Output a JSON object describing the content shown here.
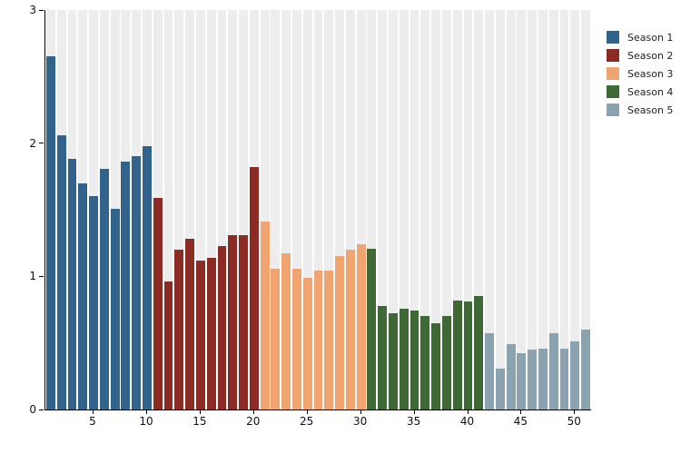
{
  "chart_data": {
    "type": "bar",
    "title": "",
    "xlabel": "",
    "ylabel": "",
    "x_range": [
      1,
      51
    ],
    "ylim": [
      0,
      3
    ],
    "yticks": [
      "0",
      "1",
      "2",
      "3"
    ],
    "xticks": [
      "5",
      "10",
      "15",
      "20",
      "25",
      "30",
      "35",
      "40",
      "45",
      "50"
    ],
    "xtick_positions": [
      5,
      10,
      15,
      20,
      25,
      30,
      35,
      40,
      45,
      50
    ],
    "grid": "column-bands",
    "band_color": "#EDEDED",
    "axis_color": "#000000",
    "legend_position": "top-right",
    "series": [
      {
        "name": "Season 1",
        "color": "#31638C",
        "episodes_start": 1,
        "values": [
          2.65,
          2.06,
          1.88,
          1.7,
          1.6,
          1.81,
          1.51,
          1.86,
          1.9,
          1.98
        ]
      },
      {
        "name": "Season 2",
        "color": "#8C2B24",
        "episodes_start": 11,
        "values": [
          1.59,
          0.96,
          1.2,
          1.28,
          1.12,
          1.14,
          1.23,
          1.31,
          1.31,
          1.82
        ]
      },
      {
        "name": "Season 3",
        "color": "#F1A470",
        "episodes_start": 21,
        "values": [
          1.41,
          1.06,
          1.17,
          1.06,
          0.99,
          1.04,
          1.04,
          1.15,
          1.2,
          1.24
        ]
      },
      {
        "name": "Season 4",
        "color": "#3E6935",
        "episodes_start": 31,
        "values": [
          1.21,
          0.78,
          0.72,
          0.76,
          0.74,
          0.7,
          0.65,
          0.7,
          0.82,
          0.81,
          0.85
        ]
      },
      {
        "name": "Season 5",
        "color": "#8BA2B0",
        "episodes_start": 42,
        "values": [
          0.57,
          0.31,
          0.49,
          0.42,
          0.45,
          0.46,
          0.57,
          0.46,
          0.51,
          0.6
        ]
      }
    ]
  },
  "legend": {
    "items": [
      {
        "label": "Season 1",
        "color": "#31638C"
      },
      {
        "label": "Season 2",
        "color": "#8C2B24"
      },
      {
        "label": "Season 3",
        "color": "#F1A470"
      },
      {
        "label": "Season 4",
        "color": "#3E6935"
      },
      {
        "label": "Season 5",
        "color": "#8BA2B0"
      }
    ]
  }
}
